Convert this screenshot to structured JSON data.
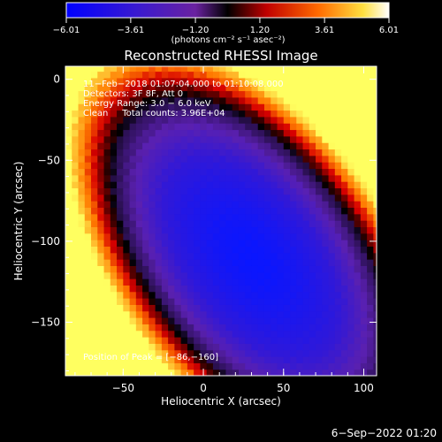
{
  "chart_data": {
    "type": "heatmap",
    "title": "Reconstructed RHESSI Image",
    "xlabel": "Heliocentric X (arcsec)",
    "ylabel": "Heliocentric Y (arcsec)",
    "xlim": [
      -86,
      108
    ],
    "ylim": [
      -183,
      8
    ],
    "xticks": [
      -50,
      0,
      50,
      100
    ],
    "xtick_labels": [
      "−50",
      "0",
      "50",
      "100"
    ],
    "yticks": [
      0,
      -50,
      -100,
      -150
    ],
    "ytick_labels": [
      "0",
      "−50",
      "−100",
      "−150"
    ],
    "colorbar": {
      "range": [
        -6.01,
        6.01
      ],
      "ticks": [
        -6.01,
        -3.61,
        -1.2,
        1.2,
        3.61,
        6.01
      ],
      "tick_labels": [
        "−6.01",
        "−3.61",
        "−1.20",
        "1.20",
        "3.61",
        "6.01"
      ],
      "units_label": "(photons cm⁻² s⁻¹ asec⁻²)"
    },
    "annotations": [
      "11−Feb−2018 01:07:04.000 to 01:10:08.000",
      "Detectors: 3F 8F, Att 0",
      "Energy Range: 3.0 − 6.0 keV",
      "Clean     Total counts: 3.96E+04"
    ],
    "peak_text": "Position of Peak = [−86,−160]",
    "peak": [
      -86,
      -160
    ],
    "min_center": [
      30,
      -110
    ]
  },
  "footer": {
    "date": "6−Sep−2022 01:20"
  },
  "colors": {
    "blue": "#0a16ff",
    "purple": "#5a20b0",
    "black": "#000000",
    "red": "#d80000",
    "orange": "#ff7a00",
    "yellow": "#ffff60",
    "white": "#ffffff"
  }
}
